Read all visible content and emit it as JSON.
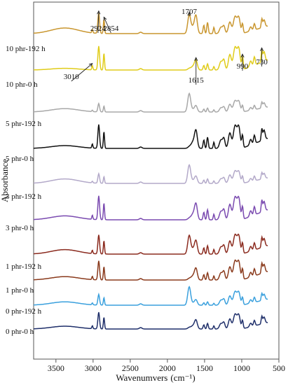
{
  "chart_data": {
    "type": "line",
    "xlabel": "Wavenumvers",
    "xlabel_unit": "(cm⁻¹)",
    "ylabel": "Absorbance",
    "x_reversed": true,
    "xlim": [
      3800,
      500
    ],
    "x_ticks": [
      {
        "value": 3500,
        "label": "3500"
      },
      {
        "value": 3000,
        "label": "3000"
      },
      {
        "value": 2500,
        "label": "2500"
      },
      {
        "value": 2000,
        "label": "2000"
      },
      {
        "value": 1500,
        "label": "1500"
      },
      {
        "value": 1000,
        "label": "1000"
      },
      {
        "value": 500,
        "label": "500"
      }
    ],
    "grid": false,
    "legend": "none",
    "annotations": [
      {
        "label": "2924",
        "x": 2924,
        "series": "10 phr-192 h"
      },
      {
        "label": "2854",
        "x": 2854,
        "series": "10 phr-192 h"
      },
      {
        "label": "1707",
        "x": 1707,
        "series": "10 phr-192 h"
      },
      {
        "label": "3010",
        "x": 3010,
        "series": "10 phr-0 h"
      },
      {
        "label": "1615",
        "x": 1615,
        "series": "10 phr-0 h"
      },
      {
        "label": "990",
        "x": 990,
        "series": "10 phr-0 h"
      },
      {
        "label": "730",
        "x": 730,
        "series": "10 phr-0 h"
      }
    ],
    "series": [
      {
        "name": "10 phr-192 h",
        "color": "#c9962f"
      },
      {
        "name": "10 phr-0 h",
        "color": "#e0cc1a"
      },
      {
        "name": "5 phr-192 h",
        "color": "#a8a8a8"
      },
      {
        "name": "5 phr-0 h",
        "color": "#111111"
      },
      {
        "name": "3 phr-192 h",
        "color": "#b3a9c9"
      },
      {
        "name": "3 phr-0 h",
        "color": "#7a4ab0"
      },
      {
        "name": "1 phr-192 h",
        "color": "#8b2b1f"
      },
      {
        "name": "1 phr-0 h",
        "color": "#8a3a1c"
      },
      {
        "name": "0 phr-192 h",
        "color": "#3aa0dd"
      },
      {
        "name": "0 phr-0 h",
        "color": "#1f2f6a"
      }
    ]
  }
}
